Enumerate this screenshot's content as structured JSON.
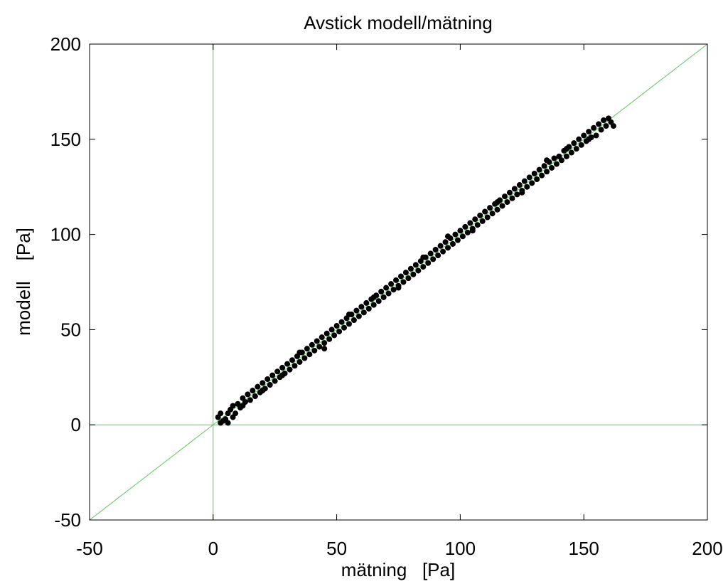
{
  "chart_data": {
    "type": "scatter",
    "title": "Avstick modell/mätning",
    "xlabel": "mätning   [Pa]",
    "ylabel": "modell    [Pa]",
    "xlim": [
      -50,
      200
    ],
    "ylim": [
      -50,
      200
    ],
    "xticks": [
      -50,
      0,
      50,
      100,
      150,
      200
    ],
    "yticks": [
      -50,
      0,
      50,
      100,
      150,
      200
    ],
    "grid": false,
    "reference_lines": [
      {
        "kind": "vertical",
        "x": 0,
        "color": "#5cc85c"
      },
      {
        "kind": "horizontal",
        "y": 0,
        "color": "#5cc85c"
      },
      {
        "kind": "identity",
        "from": [
          -50,
          -50
        ],
        "to": [
          200,
          200
        ],
        "color": "#5cc85c"
      }
    ],
    "marker_color": "#000000",
    "series": [
      {
        "points": [
          [
            2,
            4
          ],
          [
            3,
            1
          ],
          [
            3,
            6
          ],
          [
            4,
            2
          ],
          [
            5,
            3
          ],
          [
            6,
            1
          ],
          [
            6,
            6
          ],
          [
            7,
            8
          ],
          [
            8,
            4
          ],
          [
            8,
            10
          ],
          [
            9,
            6
          ],
          [
            10,
            11
          ],
          [
            11,
            9
          ],
          [
            12,
            14
          ],
          [
            13,
            12
          ],
          [
            14,
            16
          ],
          [
            15,
            13
          ],
          [
            16,
            18
          ],
          [
            17,
            15
          ],
          [
            18,
            20
          ],
          [
            19,
            17
          ],
          [
            20,
            22
          ],
          [
            21,
            19
          ],
          [
            22,
            24
          ],
          [
            23,
            21
          ],
          [
            24,
            26
          ],
          [
            25,
            23
          ],
          [
            26,
            28
          ],
          [
            27,
            25
          ],
          [
            28,
            30
          ],
          [
            29,
            27
          ],
          [
            30,
            32
          ],
          [
            31,
            29
          ],
          [
            32,
            34
          ],
          [
            33,
            31
          ],
          [
            34,
            36
          ],
          [
            35,
            33
          ],
          [
            36,
            38
          ],
          [
            37,
            35
          ],
          [
            38,
            40
          ],
          [
            39,
            37
          ],
          [
            40,
            42
          ],
          [
            41,
            39
          ],
          [
            42,
            44
          ],
          [
            43,
            41
          ],
          [
            44,
            46
          ],
          [
            45,
            43
          ],
          [
            46,
            48
          ],
          [
            47,
            45
          ],
          [
            48,
            50
          ],
          [
            49,
            47
          ],
          [
            50,
            52
          ],
          [
            51,
            49
          ],
          [
            52,
            54
          ],
          [
            53,
            51
          ],
          [
            54,
            56
          ],
          [
            55,
            53
          ],
          [
            56,
            58
          ],
          [
            57,
            55
          ],
          [
            58,
            60
          ],
          [
            59,
            57
          ],
          [
            60,
            62
          ],
          [
            61,
            59
          ],
          [
            62,
            64
          ],
          [
            63,
            61
          ],
          [
            64,
            66
          ],
          [
            65,
            63
          ],
          [
            66,
            68
          ],
          [
            67,
            65
          ],
          [
            68,
            70
          ],
          [
            69,
            67
          ],
          [
            70,
            72
          ],
          [
            71,
            69
          ],
          [
            72,
            74
          ],
          [
            73,
            71
          ],
          [
            74,
            76
          ],
          [
            75,
            73
          ],
          [
            76,
            78
          ],
          [
            77,
            75
          ],
          [
            78,
            80
          ],
          [
            79,
            77
          ],
          [
            80,
            82
          ],
          [
            81,
            79
          ],
          [
            82,
            84
          ],
          [
            83,
            81
          ],
          [
            84,
            86
          ],
          [
            85,
            83
          ],
          [
            86,
            88
          ],
          [
            87,
            85
          ],
          [
            88,
            90
          ],
          [
            89,
            87
          ],
          [
            90,
            92
          ],
          [
            91,
            89
          ],
          [
            92,
            94
          ],
          [
            93,
            91
          ],
          [
            94,
            96
          ],
          [
            95,
            93
          ],
          [
            96,
            98
          ],
          [
            97,
            95
          ],
          [
            98,
            100
          ],
          [
            99,
            97
          ],
          [
            100,
            102
          ],
          [
            101,
            99
          ],
          [
            102,
            104
          ],
          [
            103,
            101
          ],
          [
            104,
            106
          ],
          [
            105,
            103
          ],
          [
            106,
            108
          ],
          [
            107,
            105
          ],
          [
            108,
            110
          ],
          [
            109,
            107
          ],
          [
            110,
            112
          ],
          [
            111,
            109
          ],
          [
            112,
            114
          ],
          [
            113,
            111
          ],
          [
            114,
            116
          ],
          [
            115,
            113
          ],
          [
            116,
            118
          ],
          [
            117,
            115
          ],
          [
            118,
            120
          ],
          [
            119,
            117
          ],
          [
            120,
            122
          ],
          [
            121,
            119
          ],
          [
            122,
            124
          ],
          [
            123,
            121
          ],
          [
            124,
            126
          ],
          [
            125,
            123
          ],
          [
            126,
            128
          ],
          [
            127,
            125
          ],
          [
            128,
            130
          ],
          [
            129,
            127
          ],
          [
            130,
            132
          ],
          [
            131,
            129
          ],
          [
            132,
            134
          ],
          [
            133,
            131
          ],
          [
            134,
            136
          ],
          [
            135,
            133
          ],
          [
            136,
            138
          ],
          [
            137,
            135
          ],
          [
            138,
            140
          ],
          [
            139,
            137
          ],
          [
            140,
            141
          ],
          [
            141,
            139
          ],
          [
            142,
            144
          ],
          [
            143,
            141
          ],
          [
            144,
            146
          ],
          [
            145,
            143
          ],
          [
            146,
            148
          ],
          [
            147,
            145
          ],
          [
            148,
            150
          ],
          [
            149,
            147
          ],
          [
            150,
            152
          ],
          [
            151,
            149
          ],
          [
            152,
            154
          ],
          [
            153,
            151
          ],
          [
            154,
            156
          ],
          [
            155,
            152
          ],
          [
            156,
            158
          ],
          [
            157,
            155
          ],
          [
            158,
            160
          ],
          [
            159,
            157
          ],
          [
            160,
            161
          ],
          [
            161,
            159
          ],
          [
            162,
            157
          ],
          [
            20,
            18
          ],
          [
            35,
            38
          ],
          [
            45,
            40
          ],
          [
            55,
            58
          ],
          [
            65,
            67
          ],
          [
            75,
            72
          ],
          [
            85,
            88
          ],
          [
            95,
            99
          ],
          [
            105,
            102
          ],
          [
            115,
            117
          ],
          [
            125,
            122
          ],
          [
            135,
            139
          ],
          [
            143,
            145
          ],
          [
            152,
            150
          ],
          [
            12,
            10
          ],
          [
            28,
            26
          ]
        ]
      }
    ]
  }
}
